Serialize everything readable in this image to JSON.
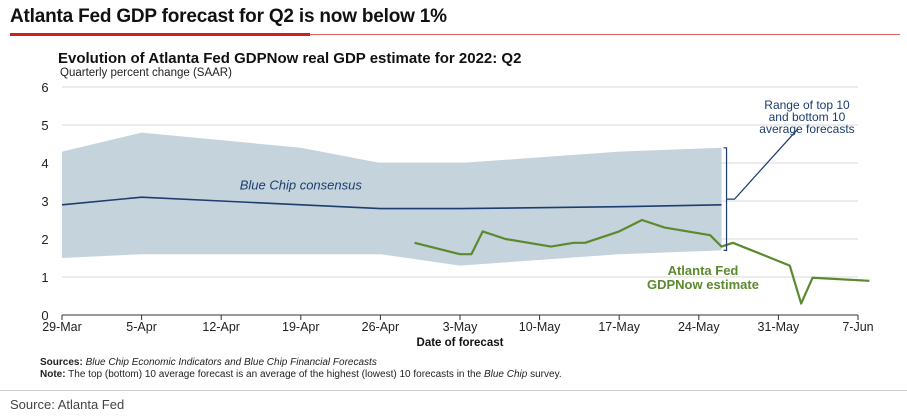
{
  "headline": "Atlanta Fed GDP forecast for Q2 is now below 1%",
  "footer_source": "Source: Atlanta Fed",
  "notes": {
    "sources_label": "Sources:",
    "sources_text": "Blue Chip Economic Indicators and Blue Chip Financial Forecasts",
    "note_label": "Note:",
    "note_text_1": "The top (bottom) 10 average forecast is an average of the highest (lowest) 10 forecasts in the",
    "note_italic": "Blue Chip",
    "note_text_2": "survey."
  },
  "colors": {
    "band": "#c5d3dc",
    "consensus": "#1c3d6e",
    "gdpnow": "#5b8a2e",
    "accent_red": "#d41e1e"
  },
  "chart_data": {
    "type": "line",
    "title": "Evolution of Atlanta Fed GDPNow real GDP estimate for 2022: Q2",
    "subtitle": "Quarterly percent change (SAAR)",
    "xlabel": "Date of forecast",
    "ylabel": "",
    "ylim": [
      0,
      6
    ],
    "y_ticks": [
      "0",
      "1",
      "2",
      "3",
      "4",
      "5",
      "6"
    ],
    "x_ticks": [
      "29-Mar",
      "5-Apr",
      "12-Apr",
      "19-Apr",
      "26-Apr",
      "3-May",
      "10-May",
      "17-May",
      "24-May",
      "31-May",
      "7-Jun"
    ],
    "x_domain_days": [
      0,
      70
    ],
    "grid": true,
    "band": {
      "name": "Range of top 10 and bottom 10 average forecasts",
      "upper": [
        [
          0,
          4.3
        ],
        [
          7,
          4.8
        ],
        [
          21,
          4.4
        ],
        [
          28,
          4.0
        ],
        [
          35,
          4.0
        ],
        [
          49,
          4.3
        ],
        [
          58,
          4.4
        ]
      ],
      "lower": [
        [
          0,
          1.5
        ],
        [
          7,
          1.6
        ],
        [
          28,
          1.6
        ],
        [
          35,
          1.3
        ],
        [
          49,
          1.6
        ],
        [
          58,
          1.7
        ]
      ]
    },
    "series": [
      {
        "name": "Blue Chip consensus",
        "points": [
          [
            0,
            2.9
          ],
          [
            7,
            3.1
          ],
          [
            14,
            3.0
          ],
          [
            28,
            2.8
          ],
          [
            35,
            2.8
          ],
          [
            49,
            2.85
          ],
          [
            58,
            2.9
          ]
        ]
      },
      {
        "name": "Atlanta Fed GDPNow estimate",
        "points": [
          [
            31,
            1.9
          ],
          [
            35,
            1.6
          ],
          [
            36,
            1.6
          ],
          [
            37,
            2.2
          ],
          [
            39,
            2.0
          ],
          [
            43,
            1.8
          ],
          [
            45,
            1.9
          ],
          [
            46,
            1.9
          ],
          [
            49,
            2.2
          ],
          [
            51,
            2.5
          ],
          [
            53,
            2.3
          ],
          [
            57,
            2.1
          ],
          [
            58,
            1.8
          ],
          [
            59,
            1.9
          ],
          [
            64,
            1.3
          ],
          [
            65,
            0.3
          ],
          [
            66,
            0.98
          ],
          [
            71,
            0.9
          ]
        ]
      }
    ],
    "annotations": {
      "consensus_label": "Blue Chip consensus",
      "range_label_lines": [
        "Range of top 10",
        "and bottom 10",
        "average forecasts"
      ],
      "gdpnow_label_lines": [
        "Atlanta Fed",
        "GDPNow estimate"
      ]
    }
  }
}
